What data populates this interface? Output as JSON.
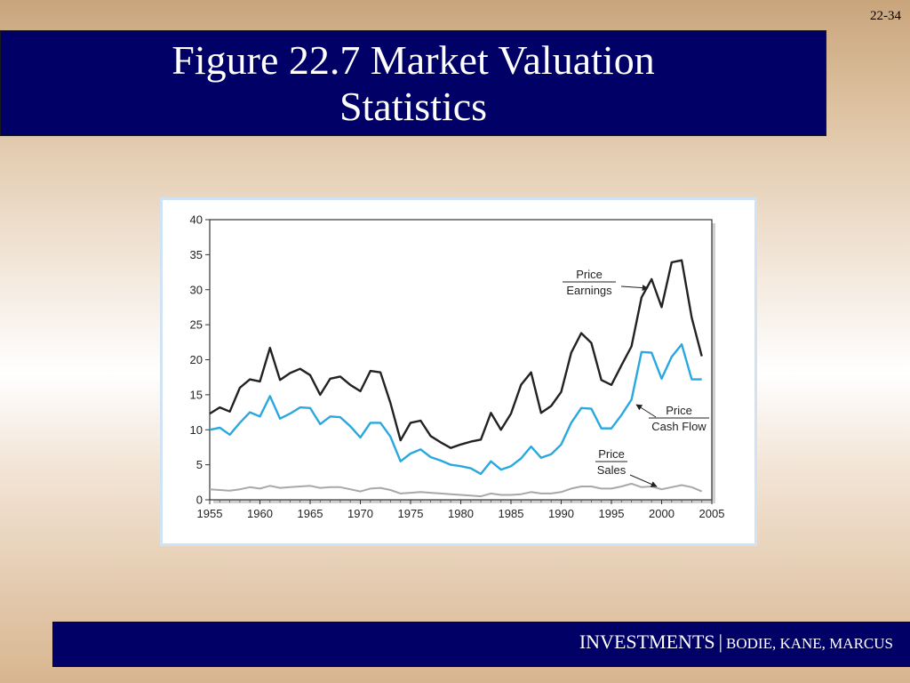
{
  "slide": {
    "number": "22-34",
    "title": "Figure 22.7 Market Valuation Statistics",
    "footer": {
      "main": "INVESTMENTS",
      "separator": "|",
      "authors": "BODIE, KANE, MARCUS"
    }
  },
  "colors": {
    "title_bar": "#000066",
    "earnings_line": "#222222",
    "cash_flow_line": "#29a8e0",
    "sales_line": "#a8a8a8"
  },
  "chart_data": {
    "type": "line",
    "title": "",
    "xlabel": "",
    "ylabel": "",
    "xlim": [
      1955,
      2005
    ],
    "ylim": [
      0,
      40
    ],
    "x_ticks": [
      "1955",
      "1960",
      "1965",
      "1970",
      "1975",
      "1980",
      "1985",
      "1990",
      "1995",
      "2000",
      "2005"
    ],
    "y_ticks": [
      "0",
      "5",
      "10",
      "15",
      "20",
      "25",
      "30",
      "35",
      "40"
    ],
    "grid": false,
    "x": [
      1955,
      1956,
      1957,
      1958,
      1959,
      1960,
      1961,
      1962,
      1963,
      1964,
      1965,
      1966,
      1967,
      1968,
      1969,
      1970,
      1971,
      1972,
      1973,
      1974,
      1975,
      1976,
      1977,
      1978,
      1979,
      1980,
      1981,
      1982,
      1983,
      1984,
      1985,
      1986,
      1987,
      1988,
      1989,
      1990,
      1991,
      1992,
      1993,
      1994,
      1995,
      1996,
      1997,
      1998,
      1999,
      2000,
      2001,
      2002,
      2003,
      2004
    ],
    "series": [
      {
        "name": "Price / Earnings",
        "label_top": "Price",
        "label_bottom": "Earnings",
        "values": [
          12.3,
          13.2,
          12.6,
          16.0,
          17.2,
          16.9,
          21.7,
          17.1,
          18.1,
          18.7,
          17.8,
          15.0,
          17.3,
          17.6,
          16.4,
          15.5,
          18.4,
          18.2,
          13.8,
          8.5,
          11.0,
          11.3,
          9.1,
          8.2,
          7.4,
          7.9,
          8.3,
          8.6,
          12.4,
          10.0,
          12.3,
          16.4,
          18.2,
          12.4,
          13.4,
          15.4,
          21.0,
          23.8,
          22.4,
          17.1,
          16.4,
          19.2,
          21.9,
          28.9,
          31.5,
          27.5,
          33.9,
          34.2,
          26.0,
          20.5
        ]
      },
      {
        "name": "Price / Cash Flow",
        "label_top": "Price",
        "label_bottom": "Cash Flow",
        "values": [
          10.0,
          10.3,
          9.3,
          11.0,
          12.5,
          11.9,
          14.8,
          11.6,
          12.3,
          13.2,
          13.1,
          10.8,
          11.9,
          11.8,
          10.5,
          8.9,
          11.0,
          11.0,
          9.0,
          5.5,
          6.6,
          7.2,
          6.1,
          5.6,
          5.0,
          4.8,
          4.5,
          3.7,
          5.5,
          4.3,
          4.8,
          5.9,
          7.6,
          6.0,
          6.5,
          7.9,
          11.0,
          13.1,
          13.0,
          10.2,
          10.2,
          12.1,
          14.3,
          21.1,
          21.0,
          17.3,
          20.4,
          22.2,
          17.2,
          17.2
        ]
      },
      {
        "name": "Price / Sales",
        "label_top": "Price",
        "label_bottom": "Sales",
        "values": [
          1.5,
          1.4,
          1.3,
          1.5,
          1.8,
          1.6,
          2.0,
          1.7,
          1.8,
          1.9,
          2.0,
          1.7,
          1.8,
          1.8,
          1.5,
          1.2,
          1.6,
          1.7,
          1.4,
          0.9,
          1.0,
          1.1,
          1.0,
          0.9,
          0.8,
          0.7,
          0.6,
          0.5,
          0.9,
          0.7,
          0.7,
          0.8,
          1.1,
          0.9,
          0.9,
          1.1,
          1.6,
          1.9,
          1.9,
          1.6,
          1.6,
          1.9,
          2.3,
          1.8,
          1.9,
          1.5,
          1.8,
          2.1,
          1.8,
          1.2
        ]
      }
    ]
  }
}
